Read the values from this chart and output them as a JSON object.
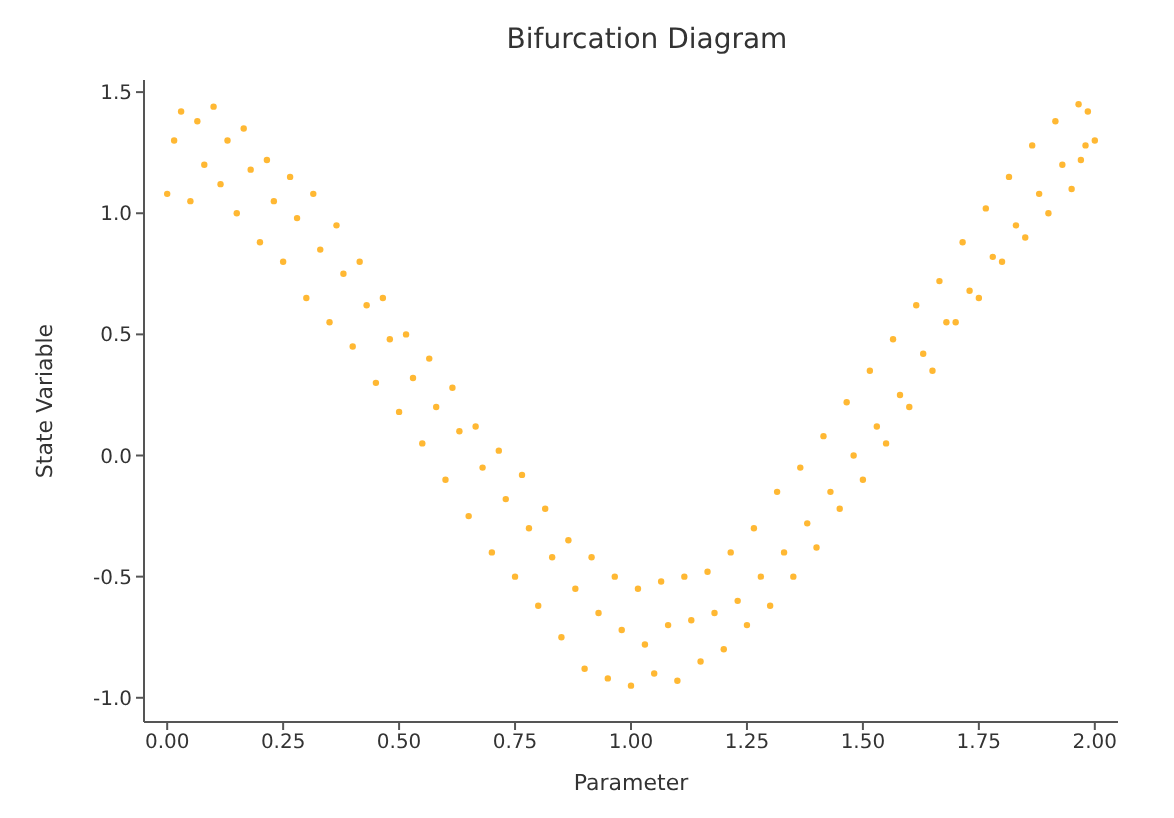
{
  "chart_data": {
    "type": "scatter",
    "title": "Bifurcation Diagram",
    "xlabel": "Parameter",
    "ylabel": "State Variable",
    "xlim": [
      -0.05,
      2.05
    ],
    "xticks": [
      {
        "value": 0,
        "label": "0.00"
      },
      {
        "value": 0.25,
        "label": "0.25"
      },
      {
        "value": 0.5,
        "label": "0.50"
      },
      {
        "value": 0.75,
        "label": "0.75"
      },
      {
        "value": 1,
        "label": "1.00"
      },
      {
        "value": 1.25,
        "label": "1.25"
      },
      {
        "value": 1.5,
        "label": "1.50"
      },
      {
        "value": 1.75,
        "label": "1.75"
      },
      {
        "value": 2,
        "label": "2.00"
      }
    ],
    "ylim": [
      -1.1,
      1.55
    ],
    "yticks": [
      {
        "value": -1,
        "label": "-1.0"
      },
      {
        "value": -0.5,
        "label": "-0.5"
      },
      {
        "value": 0,
        "label": "0.0"
      },
      {
        "value": 0.5,
        "label": "0.5"
      },
      {
        "value": 1,
        "label": "1.0"
      },
      {
        "value": 1.5,
        "label": "1.5"
      }
    ],
    "grid": false,
    "legend": false,
    "marker": "circle",
    "series": [
      {
        "color": "#ffb833",
        "x": [
          0,
          0.015,
          0.03,
          0.05,
          0.065,
          0.08,
          0.1,
          0.115,
          0.13,
          0.15,
          0.165,
          0.18,
          0.2,
          0.215,
          0.23,
          0.25,
          0.265,
          0.28,
          0.3,
          0.315,
          0.33,
          0.35,
          0.365,
          0.38,
          0.4,
          0.415,
          0.43,
          0.45,
          0.465,
          0.48,
          0.5,
          0.515,
          0.53,
          0.55,
          0.565,
          0.58,
          0.6,
          0.615,
          0.63,
          0.65,
          0.665,
          0.68,
          0.7,
          0.715,
          0.73,
          0.75,
          0.765,
          0.78,
          0.8,
          0.815,
          0.83,
          0.85,
          0.865,
          0.88,
          0.9,
          0.915,
          0.93,
          0.95,
          0.965,
          0.98,
          1,
          1.015,
          1.03,
          1.05,
          1.065,
          1.08,
          1.1,
          1.115,
          1.13,
          1.15,
          1.165,
          1.18,
          1.2,
          1.215,
          1.23,
          1.25,
          1.265,
          1.28,
          1.3,
          1.315,
          1.33,
          1.35,
          1.365,
          1.38,
          1.4,
          1.415,
          1.43,
          1.45,
          1.465,
          1.48,
          1.5,
          1.515,
          1.53,
          1.55,
          1.565,
          1.58,
          1.6,
          1.615,
          1.63,
          1.65,
          1.665,
          1.68,
          1.7,
          1.715,
          1.73,
          1.75,
          1.765,
          1.78,
          1.8,
          1.815,
          1.83,
          1.85,
          1.865,
          1.88,
          1.9,
          1.915,
          1.93,
          1.95,
          1.965,
          1.98,
          1.97,
          1.985,
          2
        ],
        "values": [
          1.08,
          1.3,
          1.42,
          1.05,
          1.38,
          1.2,
          1.44,
          1.12,
          1.3,
          1,
          1.35,
          1.18,
          0.88,
          1.22,
          1.05,
          0.8,
          1.15,
          0.98,
          0.65,
          1.08,
          0.85,
          0.55,
          0.95,
          0.75,
          0.45,
          0.8,
          0.62,
          0.3,
          0.65,
          0.48,
          0.18,
          0.5,
          0.32,
          0.05,
          0.4,
          0.2,
          -0.1,
          0.28,
          0.1,
          -0.25,
          0.12,
          -0.05,
          -0.4,
          0.02,
          -0.18,
          -0.5,
          -0.08,
          -0.3,
          -0.62,
          -0.22,
          -0.42,
          -0.75,
          -0.35,
          -0.55,
          -0.88,
          -0.42,
          -0.65,
          -0.92,
          -0.5,
          -0.72,
          -0.95,
          -0.55,
          -0.78,
          -0.9,
          -0.52,
          -0.7,
          -0.93,
          -0.5,
          -0.68,
          -0.85,
          -0.48,
          -0.65,
          -0.8,
          -0.4,
          -0.6,
          -0.7,
          -0.3,
          -0.5,
          -0.62,
          -0.15,
          -0.4,
          -0.5,
          -0.05,
          -0.28,
          -0.38,
          0.08,
          -0.15,
          -0.22,
          0.22,
          0,
          -0.1,
          0.35,
          0.12,
          0.05,
          0.48,
          0.25,
          0.2,
          0.62,
          0.42,
          0.35,
          0.72,
          0.55,
          0.55,
          0.88,
          0.68,
          0.65,
          1.02,
          0.82,
          0.8,
          1.15,
          0.95,
          0.9,
          1.28,
          1.08,
          1,
          1.38,
          1.2,
          1.1,
          1.45,
          1.28,
          1.22,
          1.42,
          1.3
        ]
      }
    ]
  }
}
